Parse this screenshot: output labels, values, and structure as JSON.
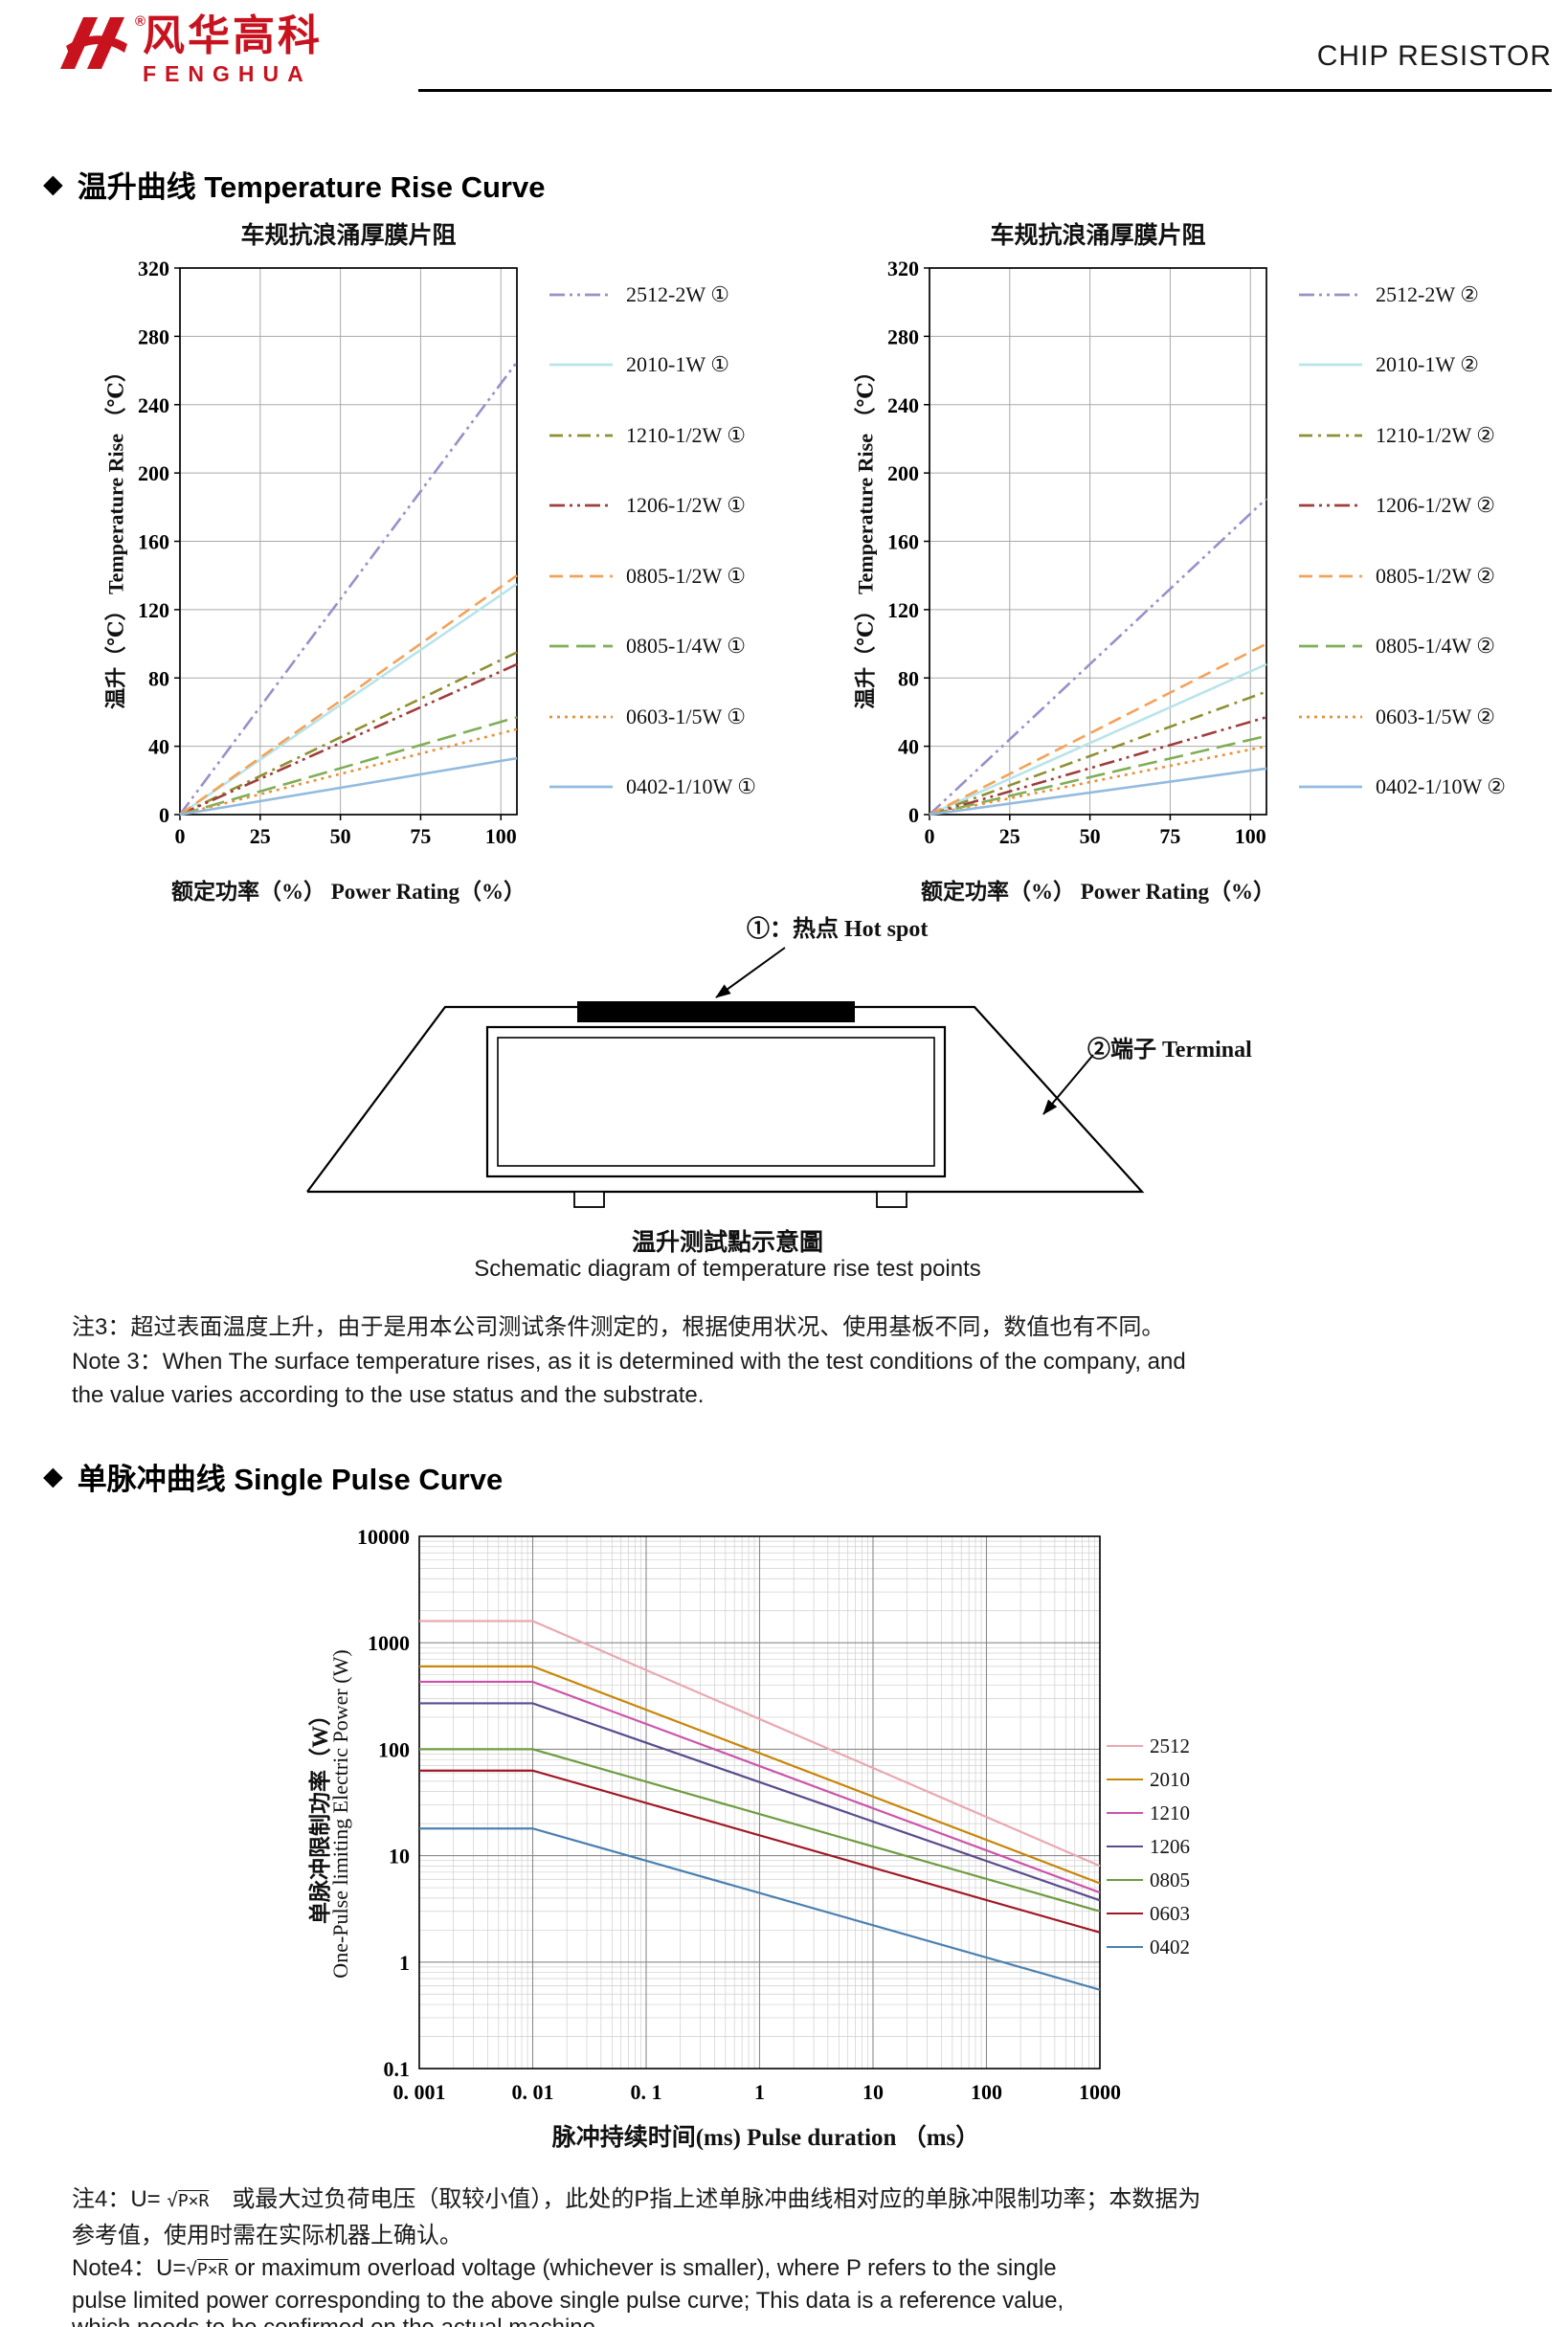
{
  "page": {
    "header": {
      "logo_cn": "风华高科",
      "logo_en": "FENGHUA",
      "registered_mark": "®",
      "title": "CHIP RESISTOR"
    },
    "section_temp": {
      "diamond": "◆",
      "title": "温升曲线 Temperature Rise Curve"
    },
    "schematic": {
      "hotspot_label": "①：热点  Hot spot",
      "terminal_label": "②端子 Terminal",
      "caption_cn": "温升测試點示意圖",
      "caption_en": "Schematic diagram of temperature rise test points"
    },
    "note3": {
      "cn": "注3：超过表面温度上升，由于是用本公司测试条件测定的，根据使用状况、使用基板不同，数值也有不同。",
      "en_1": "Note 3：When The surface temperature rises, as it is determined with the test conditions of the company, and",
      "en_2": "the value varies according to the use status and the substrate."
    },
    "section_pulse": {
      "diamond": "◆",
      "title": "单脉冲曲线 Single Pulse Curve"
    },
    "note4": {
      "sqrt": "√",
      "cn_1a": "注4：U= ",
      "cn_formula": "P×R",
      "cn_1b": "　或最大过负荷电压（取较小值），此处的P指上述单脉冲曲线相对应的单脉冲限制功率；本数据为",
      "cn_2": "参考值，使用时需在实际机器上确认。",
      "en_1a": "Note4：U=",
      "en_formula": "P×R",
      "en_1b": " or maximum overload voltage (whichever is smaller), where P refers to the single",
      "en_2": "pulse limited power corresponding to the above single pulse curve; This data is a reference value,",
      "en_3": "which needs to be confirmed on the actual machine."
    }
  },
  "chart_data": [
    {
      "id": "temp_rise_hotspot",
      "type": "line",
      "title": "车规抗浪涌厚膜片阻",
      "ylabel": "温升（℃）   Temperature Rise （℃）",
      "xlabel": "额定功率（%）    Power Rating（%）",
      "xlim": [
        0,
        105
      ],
      "ylim": [
        0,
        320
      ],
      "xticks": [
        0,
        25,
        50,
        75,
        100
      ],
      "yticks": [
        0,
        40,
        80,
        120,
        160,
        200,
        240,
        280,
        320
      ],
      "grid": true,
      "legend_position": "right",
      "series": [
        {
          "name": "2512-2W ①",
          "color": "#9b8fc9",
          "style": "dashdotdot",
          "x": [
            0,
            105
          ],
          "y": [
            0,
            265
          ]
        },
        {
          "name": "2010-1W ①",
          "color": "#b8e4ea",
          "style": "solid",
          "x": [
            0,
            105
          ],
          "y": [
            0,
            135
          ]
        },
        {
          "name": "1210-1/2W ①",
          "color": "#8f8f33",
          "style": "dashdot",
          "x": [
            0,
            105
          ],
          "y": [
            0,
            95
          ]
        },
        {
          "name": "1206-1/2W ①",
          "color": "#a03c3c",
          "style": "dashdotdot",
          "x": [
            0,
            105
          ],
          "y": [
            0,
            88
          ]
        },
        {
          "name": "0805-1/2W ①",
          "color": "#f4a259",
          "style": "dashed",
          "x": [
            0,
            105
          ],
          "y": [
            0,
            140
          ]
        },
        {
          "name": "0805-1/4W ①",
          "color": "#7fae57",
          "style": "dashed2",
          "x": [
            0,
            105
          ],
          "y": [
            0,
            57
          ]
        },
        {
          "name": "0603-1/5W ①",
          "color": "#e79138",
          "style": "dotted",
          "x": [
            0,
            105
          ],
          "y": [
            0,
            50
          ]
        },
        {
          "name": "0402-1/10W ①",
          "color": "#93bbdf",
          "style": "solid",
          "x": [
            0,
            105
          ],
          "y": [
            0,
            33
          ]
        }
      ]
    },
    {
      "id": "temp_rise_terminal",
      "type": "line",
      "title": "车规抗浪涌厚膜片阻",
      "ylabel": "温升（℃）   Temperature Rise （℃）",
      "xlabel": "额定功率（%）    Power Rating（%）",
      "xlim": [
        0,
        105
      ],
      "ylim": [
        0,
        320
      ],
      "xticks": [
        0,
        25,
        50,
        75,
        100
      ],
      "yticks": [
        0,
        40,
        80,
        120,
        160,
        200,
        240,
        280,
        320
      ],
      "grid": true,
      "legend_position": "right",
      "series": [
        {
          "name": "2512-2W ②",
          "color": "#9b8fc9",
          "style": "dashdotdot",
          "x": [
            0,
            105
          ],
          "y": [
            0,
            185
          ]
        },
        {
          "name": "2010-1W ②",
          "color": "#b8e4ea",
          "style": "solid",
          "x": [
            0,
            105
          ],
          "y": [
            0,
            88
          ]
        },
        {
          "name": "1210-1/2W ②",
          "color": "#8f8f33",
          "style": "dashdot",
          "x": [
            0,
            105
          ],
          "y": [
            0,
            72
          ]
        },
        {
          "name": "1206-1/2W ②",
          "color": "#a03c3c",
          "style": "dashdotdot",
          "x": [
            0,
            105
          ],
          "y": [
            0,
            57
          ]
        },
        {
          "name": "0805-1/2W ②",
          "color": "#f4a259",
          "style": "dashed",
          "x": [
            0,
            105
          ],
          "y": [
            0,
            100
          ]
        },
        {
          "name": "0805-1/4W ②",
          "color": "#7fae57",
          "style": "dashed2",
          "x": [
            0,
            105
          ],
          "y": [
            0,
            46
          ]
        },
        {
          "name": "0603-1/5W ②",
          "color": "#e79138",
          "style": "dotted",
          "x": [
            0,
            105
          ],
          "y": [
            0,
            40
          ]
        },
        {
          "name": "0402-1/10W ②",
          "color": "#93bbdf",
          "style": "solid",
          "x": [
            0,
            105
          ],
          "y": [
            0,
            27
          ]
        }
      ]
    },
    {
      "id": "single_pulse",
      "type": "loglog-line",
      "ylabel_cn": "单脉冲限制功率（W）",
      "ylabel_en": "One-Pulse limiting Electric Power (W)",
      "xlabel": "脉冲持续时间(ms)  Pulse duration （ms）",
      "xlim": [
        0.001,
        1000
      ],
      "ylim": [
        0.1,
        10000
      ],
      "xticks": [
        "0. 001",
        "0. 01",
        "0. 1",
        "1",
        "10",
        "100",
        "1000"
      ],
      "yticks": [
        "10000",
        "1000",
        "100",
        "10",
        "1",
        "0.1"
      ],
      "grid": true,
      "legend_position": "right",
      "series": [
        {
          "name": "2512",
          "color": "#e9a9b0",
          "points": [
            [
              0.001,
              1600
            ],
            [
              0.01,
              1600
            ],
            [
              1000,
              8
            ]
          ]
        },
        {
          "name": "2010",
          "color": "#c8860a",
          "points": [
            [
              0.001,
              600
            ],
            [
              0.01,
              600
            ],
            [
              1000,
              5.5
            ]
          ]
        },
        {
          "name": "1210",
          "color": "#cc55aa",
          "points": [
            [
              0.001,
              430
            ],
            [
              0.01,
              430
            ],
            [
              1000,
              4.5
            ]
          ]
        },
        {
          "name": "1206",
          "color": "#5b4b8e",
          "points": [
            [
              0.001,
              270
            ],
            [
              0.01,
              270
            ],
            [
              1000,
              3.8
            ]
          ]
        },
        {
          "name": "0805",
          "color": "#6f9c41",
          "points": [
            [
              0.001,
              100
            ],
            [
              0.01,
              100
            ],
            [
              1000,
              3.0
            ]
          ]
        },
        {
          "name": "0603",
          "color": "#a01825",
          "points": [
            [
              0.001,
              63
            ],
            [
              0.01,
              63
            ],
            [
              1000,
              1.9
            ]
          ]
        },
        {
          "name": "0402",
          "color": "#4a80b0",
          "points": [
            [
              0.001,
              18
            ],
            [
              0.01,
              18
            ],
            [
              1000,
              0.55
            ]
          ]
        }
      ]
    }
  ]
}
